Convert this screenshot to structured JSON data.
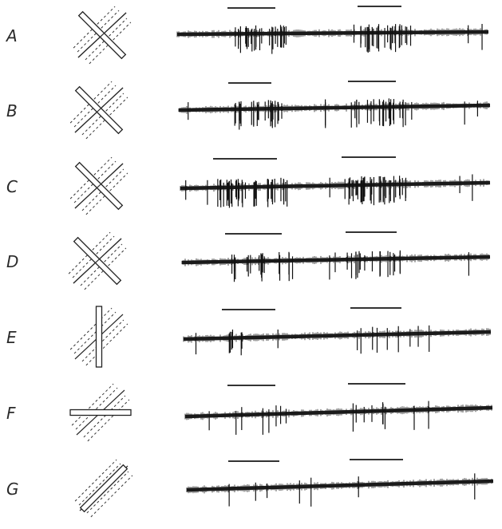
{
  "rows": [
    {
      "label": "A",
      "bar_angle": 45,
      "activity": "strong"
    },
    {
      "label": "B",
      "bar_angle": 45,
      "activity": "strong"
    },
    {
      "label": "C",
      "bar_angle": 45,
      "activity": "strongest"
    },
    {
      "label": "D",
      "bar_angle": 45,
      "activity": "moderate"
    },
    {
      "label": "E",
      "bar_angle": 90,
      "activity": "weak"
    },
    {
      "label": "F",
      "bar_angle": 0,
      "activity": "weak"
    },
    {
      "label": "G",
      "bar_angle": -45,
      "activity": "none"
    }
  ]
}
